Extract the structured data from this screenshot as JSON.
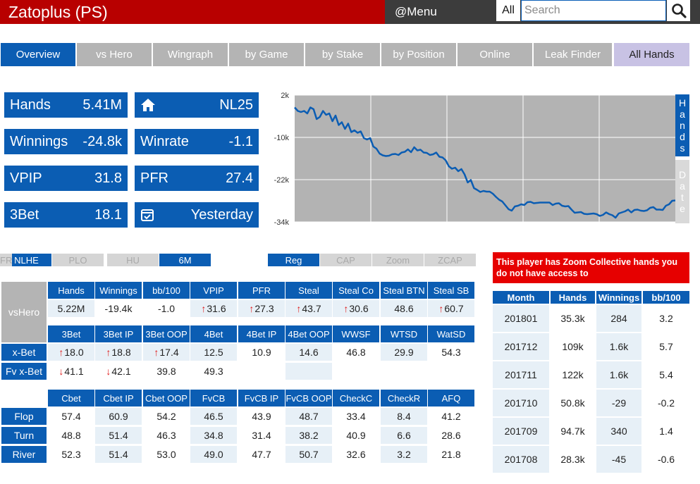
{
  "topbar": {
    "title": "Zatoplus (PS)",
    "menu": "@Menu",
    "all": "All",
    "search_placeholder": "Search"
  },
  "tabs": [
    "Overview",
    "vs Hero",
    "Wingraph",
    "by Game",
    "by Stake",
    "by Position",
    "Online",
    "Leak Finder",
    "All Hands"
  ],
  "active_tab": "Overview",
  "stats": {
    "hands_label": "Hands",
    "hands_value": "5.41M",
    "stake_value": "NL25",
    "winnings_label": "Winnings",
    "winnings_value": "-24.8k",
    "winrate_label": "Winrate",
    "winrate_value": "-1.1",
    "vpip_label": "VPIP",
    "vpip_value": "31.8",
    "pfr_label": "PFR",
    "pfr_value": "27.4",
    "threebet_label": "3Bet",
    "threebet_value": "18.1",
    "lastseen_value": "Yesterday"
  },
  "icons": {
    "stake": "home-icon",
    "lastseen": "calendar-check-icon",
    "search": "search-icon"
  },
  "chart_data": {
    "type": "line",
    "ylim": [
      -34000,
      2000
    ],
    "yticks": [
      "2k",
      "-10k",
      "-22k",
      "-34k"
    ],
    "ytick_values": [
      2000,
      -10000,
      -22000,
      -34000
    ],
    "grid": true,
    "xlabel": "",
    "ylabel": "",
    "color": "#0b5db3",
    "series": [
      {
        "values": [
          -1500,
          -2500,
          -2800,
          -2500,
          -3200,
          -1500,
          -2000,
          -4800,
          -4200,
          -2500,
          -3600,
          -3200,
          -5400,
          -3800,
          -6500,
          -5700,
          -7600,
          -6100,
          -8500,
          -8000,
          -8700,
          -8300,
          -10200,
          -10600,
          -10200,
          -12600,
          -13200,
          -14600,
          -15100,
          -15300,
          -15200,
          -14800,
          -14700,
          -15000,
          -14300,
          -14100,
          -13400,
          -14200,
          -12800,
          -13700,
          -13500,
          -14300,
          -14400,
          -15000,
          -14800,
          -14300,
          -15500,
          -15700,
          -16500,
          -18200,
          -18900,
          -18600,
          -19600,
          -19000,
          -20500,
          -22800,
          -22100,
          -24400,
          -24900,
          -25500,
          -25200,
          -25400,
          -25400,
          -26000,
          -26900,
          -27700,
          -28200,
          -29300,
          -30400,
          -30800,
          -29600,
          -29400,
          -29000,
          -29200,
          -28400,
          -28300,
          -28700,
          -28600,
          -28500,
          -28500,
          -28500,
          -28500,
          -29200,
          -28800,
          -28700,
          -29400,
          -29600,
          -29500,
          -30500,
          -31400,
          -31300,
          -31200,
          -31700,
          -31800,
          -31700,
          -31600,
          -31800,
          -32300,
          -32000,
          -31300,
          -31800,
          -32100,
          -32800,
          -31600,
          -31300,
          -31000,
          -30500,
          -31300,
          -30600,
          -30500,
          -30800,
          -30900,
          -30700,
          -30000,
          -29800,
          -30500,
          -30500,
          -30600,
          -29400,
          -29000,
          -28000,
          -27900
        ]
      }
    ]
  },
  "chart_toggles": {
    "hands": "Hands",
    "date": "Date"
  },
  "filters": {
    "game": [
      {
        "label": "NLHE",
        "active": true
      },
      {
        "label": "PLO",
        "active": false
      }
    ],
    "size": [
      {
        "label": "HU",
        "active": false
      },
      {
        "label": "6M",
        "active": true
      },
      {
        "label": "FR",
        "active": false
      }
    ],
    "type": [
      {
        "label": "Reg",
        "active": true
      },
      {
        "label": "CAP",
        "active": false
      },
      {
        "label": "Zoom",
        "active": false
      },
      {
        "label": "ZCAP",
        "active": false
      }
    ]
  },
  "vs": {
    "corner_label": "vsHero",
    "header1": [
      "Hands",
      "Winnings",
      "bb/100",
      "VPIP",
      "PFR",
      "Steal",
      "Steal Co",
      "Steal BTN",
      "Steal SB"
    ],
    "row1": [
      "5.22M",
      "-19.4k",
      "-1.0",
      "31.6",
      "27.3",
      "43.7",
      "30.6",
      "48.6",
      "60.7"
    ],
    "row1_arrows": [
      "",
      "",
      "",
      "up",
      "up",
      "up",
      "up",
      "",
      "up"
    ],
    "header2": [
      "3Bet",
      "3Bet IP",
      "3Bet OOP",
      "4Bet",
      "4Bet IP",
      "4Bet OOP",
      "WWSF",
      "WTSD",
      "WatSD"
    ],
    "rowlabels": [
      "x-Bet",
      "Fv x-Bet"
    ],
    "row2": [
      "18.0",
      "18.8",
      "17.4",
      "12.5",
      "10.9",
      "14.6",
      "46.8",
      "29.9",
      "54.3"
    ],
    "row2_arrows": [
      "up",
      "up",
      "up",
      "",
      "",
      "",
      "",
      "",
      ""
    ],
    "row3": [
      "41.1",
      "42.1",
      "39.8",
      "49.3",
      "",
      "",
      "",
      "",
      ""
    ],
    "row3_arrows": [
      "down",
      "down",
      "",
      "",
      "",
      "",
      "",
      "",
      ""
    ]
  },
  "postflop": {
    "headers": [
      "Cbet",
      "Cbet IP",
      "Cbet OOP",
      "FvCB",
      "FvCB IP",
      "FvCB OOP",
      "CheckC",
      "CheckR",
      "AFQ"
    ],
    "rows": [
      {
        "label": "Flop",
        "values": [
          "57.4",
          "60.9",
          "54.2",
          "46.5",
          "43.9",
          "48.7",
          "33.4",
          "8.4",
          "41.2"
        ]
      },
      {
        "label": "Turn",
        "values": [
          "48.8",
          "51.4",
          "46.3",
          "34.8",
          "31.4",
          "38.2",
          "40.9",
          "6.6",
          "28.6"
        ]
      },
      {
        "label": "River",
        "values": [
          "52.3",
          "51.4",
          "53.0",
          "49.0",
          "47.7",
          "50.7",
          "32.6",
          "3.2",
          "21.8"
        ]
      }
    ]
  },
  "alert": "This player has Zoom Collective hands you do not have access to",
  "monthly": {
    "headers": [
      "Month",
      "Hands",
      "Winnings",
      "bb/100"
    ],
    "rows": [
      [
        "201801",
        "35.3k",
        "284",
        "3.2"
      ],
      [
        "201712",
        "109k",
        "1.6k",
        "5.7"
      ],
      [
        "201711",
        "122k",
        "1.6k",
        "5.4"
      ],
      [
        "201710",
        "50.8k",
        "-29",
        "-0.2"
      ],
      [
        "201709",
        "94.7k",
        "340",
        "1.4"
      ],
      [
        "201708",
        "28.3k",
        "-45",
        "-0.6"
      ]
    ]
  }
}
